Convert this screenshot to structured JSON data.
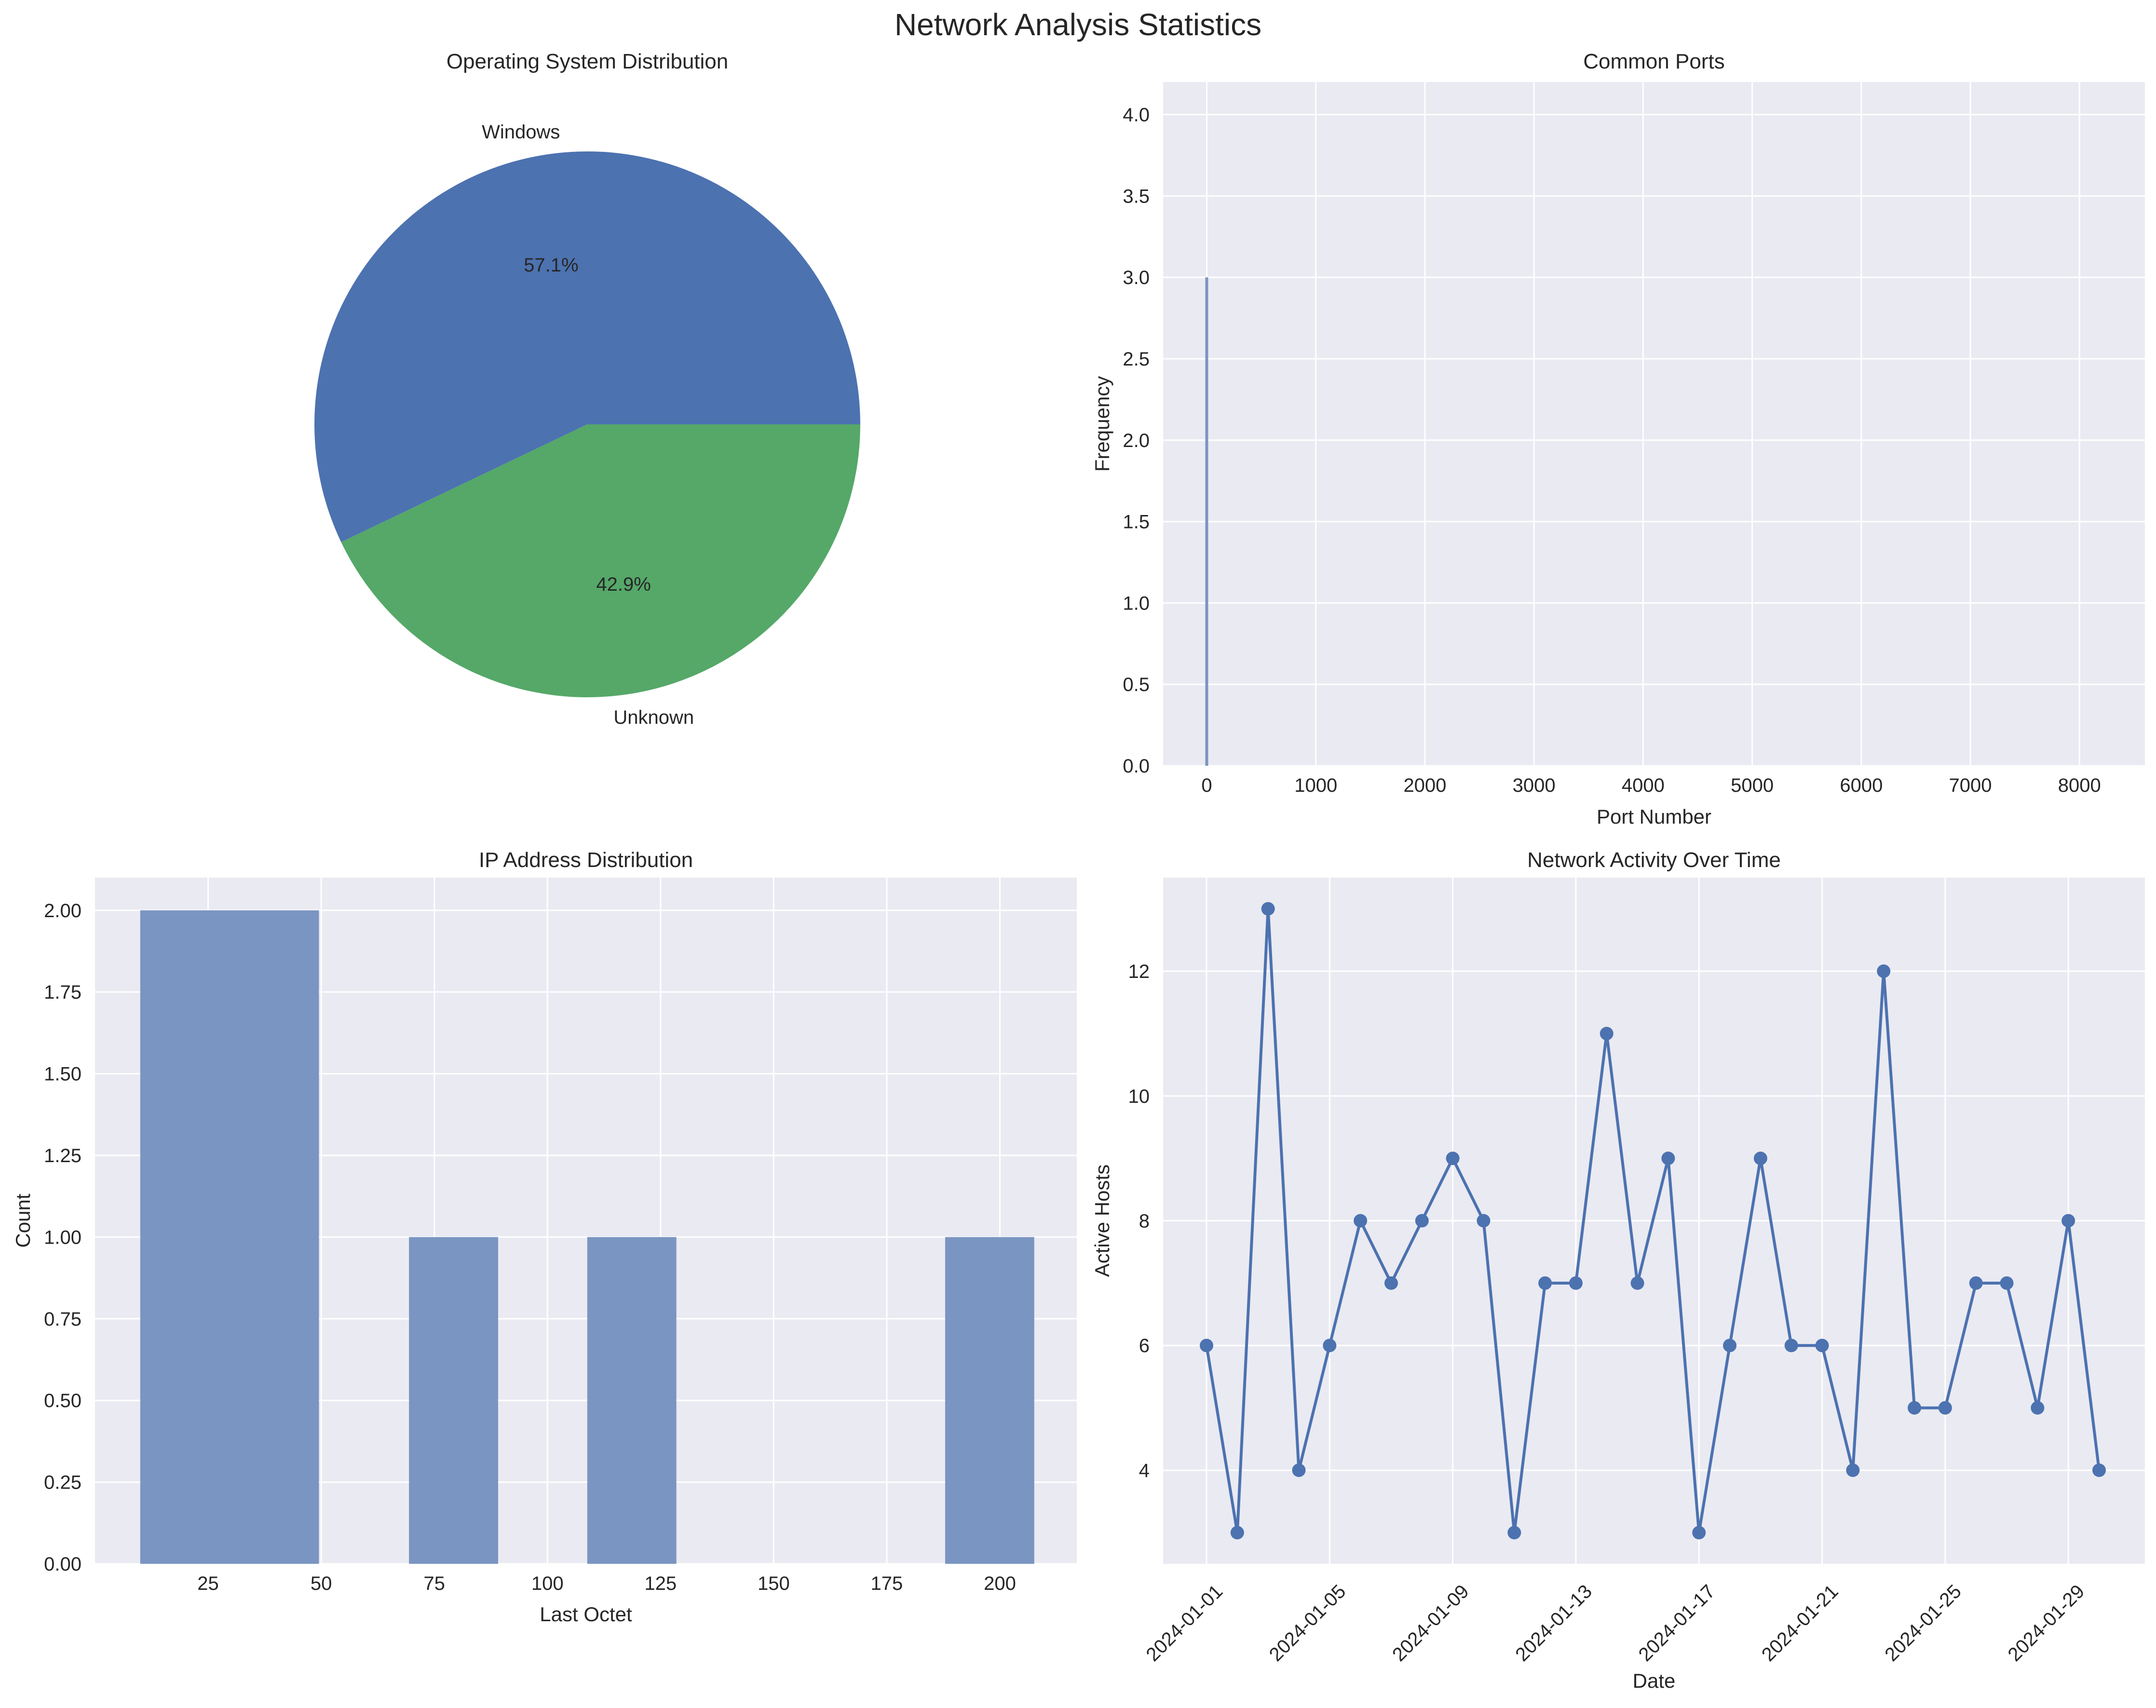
{
  "figure": {
    "title": "Network Analysis Statistics"
  },
  "colors": {
    "plot_bg": "#EAEAF2",
    "grid": "#FFFFFF",
    "blue": "#4C72B0",
    "green": "#55A868",
    "bar": "#7B95C2",
    "text": "#262626"
  },
  "chart_data": [
    {
      "type": "pie",
      "title": "Operating System Distribution",
      "labels": [
        "Windows",
        "Unknown"
      ],
      "values": [
        57.1,
        42.9
      ],
      "autopct": [
        "57.1%",
        "42.9%"
      ],
      "colors": [
        "#4C72B0",
        "#55A868"
      ]
    },
    {
      "type": "bar",
      "title": "Common Ports",
      "xlabel": "Port Number",
      "ylabel": "Frequency",
      "xlim": [
        -400,
        8600
      ],
      "ylim": [
        0,
        4.2
      ],
      "xticks": [
        0,
        1000,
        2000,
        3000,
        4000,
        5000,
        6000,
        7000,
        8000
      ],
      "yticks": [
        "0.0",
        "0.5",
        "1.0",
        "1.5",
        "2.0",
        "2.5",
        "3.0",
        "3.5",
        "4.0"
      ],
      "bars": [
        {
          "x": 0,
          "value": 3
        }
      ],
      "grid": true
    },
    {
      "type": "bar",
      "title": "IP Address Distribution",
      "xlabel": "Last Octet",
      "ylabel": "Count",
      "xlim": [
        0,
        217
      ],
      "ylim": [
        0,
        2.1
      ],
      "xticks": [
        "25",
        "50",
        "75",
        "100",
        "125",
        "150",
        "175",
        "200"
      ],
      "yticks": [
        "0.00",
        "0.25",
        "0.50",
        "0.75",
        "1.00",
        "1.25",
        "1.50",
        "1.75",
        "2.00"
      ],
      "bins": [
        {
          "from": 10,
          "to": 49.5,
          "count": 2
        },
        {
          "from": 69.4,
          "to": 89.1,
          "count": 1
        },
        {
          "from": 108.8,
          "to": 128.5,
          "count": 1
        },
        {
          "from": 187.9,
          "to": 207.6,
          "count": 1
        }
      ],
      "grid": true
    },
    {
      "type": "line",
      "title": "Network Activity Over Time",
      "xlabel": "Date",
      "ylabel": "Active Hosts",
      "x": [
        "2024-01-01",
        "2024-01-02",
        "2024-01-03",
        "2024-01-04",
        "2024-01-05",
        "2024-01-06",
        "2024-01-07",
        "2024-01-08",
        "2024-01-09",
        "2024-01-10",
        "2024-01-11",
        "2024-01-12",
        "2024-01-13",
        "2024-01-14",
        "2024-01-15",
        "2024-01-16",
        "2024-01-17",
        "2024-01-18",
        "2024-01-19",
        "2024-01-20",
        "2024-01-21",
        "2024-01-22",
        "2024-01-23",
        "2024-01-24",
        "2024-01-25",
        "2024-01-26",
        "2024-01-27",
        "2024-01-28",
        "2024-01-29",
        "2024-01-30"
      ],
      "y": [
        6,
        3,
        13,
        4,
        6,
        8,
        7,
        8,
        9,
        8,
        3,
        7,
        7,
        11,
        7,
        9,
        3,
        6,
        9,
        6,
        6,
        4,
        12,
        5,
        5,
        7,
        7,
        5,
        8,
        4
      ],
      "xticks": [
        "2024-01-01",
        "2024-01-05",
        "2024-01-09",
        "2024-01-13",
        "2024-01-17",
        "2024-01-21",
        "2024-01-25",
        "2024-01-29"
      ],
      "yticks": [
        "4",
        "6",
        "8",
        "10",
        "12"
      ],
      "ylim": [
        2.5,
        13.5
      ],
      "marker": "circle",
      "grid": true
    }
  ]
}
